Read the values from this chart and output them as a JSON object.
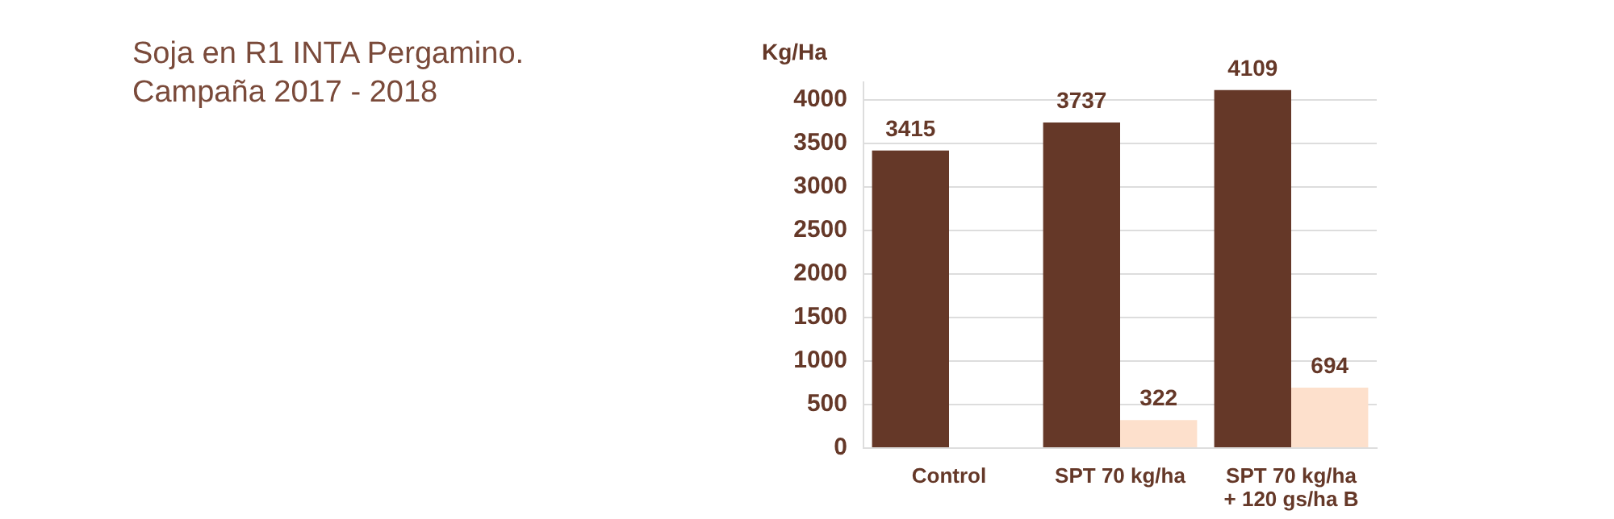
{
  "chart_data": {
    "type": "bar",
    "title": "Soja en R1 INTA Pergamino.",
    "subtitle": "Campaña 2017 - 2018",
    "ylabel": "Kg/Ha",
    "categories": [
      "Control",
      "SPT 70 kg/ha",
      "SPT 70 kg/ha + 120 gs/ha B"
    ],
    "series": [
      {
        "color": "#653828",
        "values": [
          3415,
          3737,
          4109
        ]
      },
      {
        "color": "#fde0cc",
        "values": [
          null,
          322,
          694
        ]
      }
    ],
    "ylim": [
      0,
      4200
    ],
    "yticks": [
      0,
      500,
      1000,
      1500,
      2000,
      2500,
      3000,
      3500,
      4000
    ],
    "grid": "y",
    "legend": false,
    "data_labels": true
  }
}
